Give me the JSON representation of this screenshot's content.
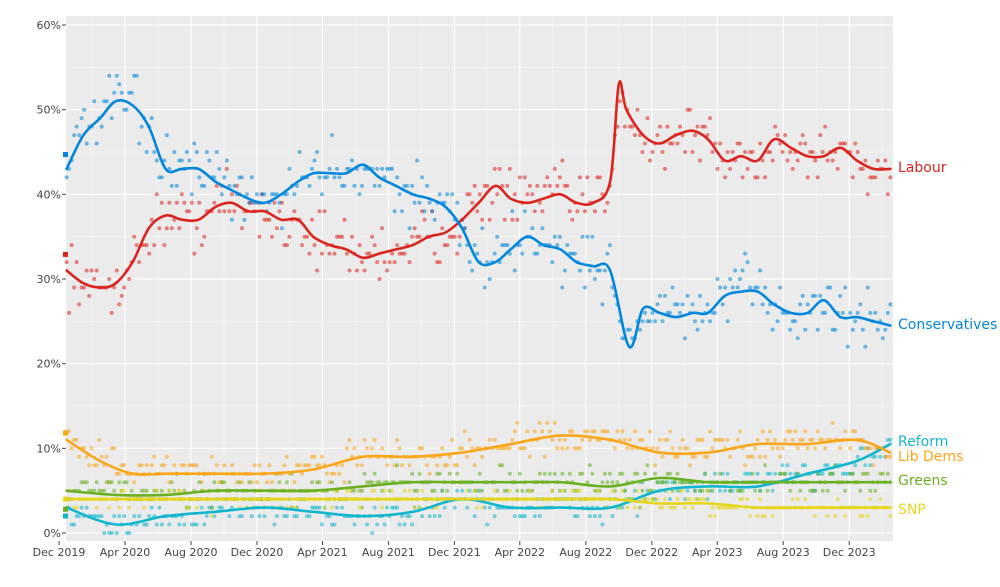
{
  "chart_data": {
    "type": "scatter",
    "title": "",
    "xlabel": "",
    "ylabel": "",
    "x_ticks": [
      "Dec 2019",
      "Apr 2020",
      "Aug 2020",
      "Dec 2020",
      "Apr 2021",
      "Aug 2021",
      "Dec 2021",
      "Apr 2022",
      "Aug 2022",
      "Dec 2022",
      "Apr 2023",
      "Aug 2023",
      "Dec 2023"
    ],
    "y_ticks": [
      "0%",
      "10%",
      "20%",
      "30%",
      "40%",
      "50%",
      "60%"
    ],
    "x_range": [
      "2019-12-12",
      "2024-02-20"
    ],
    "ylim": [
      0,
      60
    ],
    "grid": true,
    "background": "#ebebeb",
    "election_result_markers": [
      {
        "party": "Conservatives",
        "value": 44.7
      },
      {
        "party": "Labour",
        "value": 32.9
      },
      {
        "party": "Lib Dems",
        "value": 11.8
      },
      {
        "party": "Greens",
        "value": 2.8
      },
      {
        "party": "SNP",
        "value": 4.0
      },
      {
        "party": "Reform",
        "value": 2.0
      }
    ],
    "series": [
      {
        "name": "Labour",
        "color": "#dc241f",
        "x": [
          "2019-12-15",
          "2020-01-15",
          "2020-02-15",
          "2020-03-15",
          "2020-04-15",
          "2020-05-15",
          "2020-06-15",
          "2020-07-15",
          "2020-08-15",
          "2020-09-15",
          "2020-10-15",
          "2020-11-15",
          "2020-12-15",
          "2021-01-15",
          "2021-02-15",
          "2021-03-15",
          "2021-04-15",
          "2021-05-15",
          "2021-06-15",
          "2021-07-15",
          "2021-08-15",
          "2021-09-15",
          "2021-10-15",
          "2021-11-15",
          "2021-12-15",
          "2022-01-15",
          "2022-02-15",
          "2022-03-15",
          "2022-04-15",
          "2022-05-15",
          "2022-06-15",
          "2022-07-15",
          "2022-08-15",
          "2022-09-15",
          "2022-10-01",
          "2022-10-15",
          "2022-11-15",
          "2022-12-15",
          "2023-01-15",
          "2023-02-15",
          "2023-03-15",
          "2023-04-15",
          "2023-05-15",
          "2023-06-15",
          "2023-07-15",
          "2023-08-15",
          "2023-09-15",
          "2023-10-15",
          "2023-11-15",
          "2023-12-15",
          "2024-01-15",
          "2024-02-15"
        ],
        "values": [
          31,
          29.5,
          29,
          29.5,
          32,
          36,
          37.5,
          37,
          37,
          38.5,
          39,
          38,
          38,
          37,
          37,
          35,
          34,
          33.5,
          32.5,
          33,
          33.5,
          34,
          35,
          35.5,
          37,
          39,
          41,
          39.5,
          39,
          39.5,
          40,
          39,
          39,
          41.5,
          53,
          50,
          47,
          46,
          47,
          47.5,
          46.5,
          44,
          44.5,
          44,
          46.5,
          45.5,
          44.5,
          44.5,
          45.5,
          44,
          43,
          43
        ]
      },
      {
        "name": "Conservatives",
        "color": "#0087dc",
        "x": [
          "2019-12-15",
          "2020-01-15",
          "2020-02-15",
          "2020-03-15",
          "2020-04-15",
          "2020-05-15",
          "2020-06-15",
          "2020-07-15",
          "2020-08-15",
          "2020-09-15",
          "2020-10-15",
          "2020-11-15",
          "2020-12-15",
          "2021-01-15",
          "2021-02-15",
          "2021-03-15",
          "2021-04-15",
          "2021-05-15",
          "2021-06-15",
          "2021-07-15",
          "2021-08-15",
          "2021-09-15",
          "2021-10-15",
          "2021-11-15",
          "2021-12-15",
          "2022-01-15",
          "2022-02-15",
          "2022-03-15",
          "2022-04-15",
          "2022-05-15",
          "2022-06-15",
          "2022-07-15",
          "2022-08-15",
          "2022-09-15",
          "2022-10-20",
          "2022-11-15",
          "2022-12-15",
          "2023-01-15",
          "2023-02-15",
          "2023-03-15",
          "2023-04-15",
          "2023-05-15",
          "2023-06-15",
          "2023-07-15",
          "2023-08-15",
          "2023-09-15",
          "2023-10-15",
          "2023-11-15",
          "2023-12-15",
          "2024-01-15",
          "2024-02-15"
        ],
        "values": [
          43,
          47,
          49,
          51,
          50.5,
          48,
          43,
          43,
          43,
          41.5,
          40.5,
          39.5,
          39,
          40,
          41.5,
          42.5,
          42.5,
          42.5,
          43.5,
          42,
          41,
          40,
          39.5,
          38.5,
          36,
          32,
          32,
          33.5,
          35,
          34,
          33.5,
          32,
          31.5,
          31,
          22,
          26.5,
          26,
          25.5,
          26,
          26,
          28,
          28.5,
          28.5,
          27,
          26,
          26,
          27.5,
          25.5,
          25.5,
          25,
          24.5
        ]
      },
      {
        "name": "Reform",
        "color": "#12b6cf",
        "x": [
          "2019-12-15",
          "2020-03-15",
          "2020-06-15",
          "2020-09-15",
          "2020-12-15",
          "2021-03-15",
          "2021-06-15",
          "2021-09-15",
          "2021-12-15",
          "2022-03-15",
          "2022-06-15",
          "2022-09-15",
          "2022-12-15",
          "2023-03-15",
          "2023-06-15",
          "2023-09-15",
          "2023-12-15",
          "2024-02-15"
        ],
        "values": [
          3,
          1,
          2,
          2.5,
          3,
          2.5,
          2,
          2.5,
          4,
          3,
          3,
          3,
          5,
          5.5,
          5.5,
          7,
          8.5,
          10.5
        ]
      },
      {
        "name": "Lib Dems",
        "color": "#faa61a",
        "x": [
          "2019-12-15",
          "2020-02-15",
          "2020-04-15",
          "2020-06-15",
          "2020-09-15",
          "2020-12-15",
          "2021-03-15",
          "2021-06-15",
          "2021-09-15",
          "2021-12-15",
          "2022-03-15",
          "2022-06-15",
          "2022-09-15",
          "2022-12-15",
          "2023-03-15",
          "2023-06-15",
          "2023-09-15",
          "2023-12-15",
          "2024-02-15"
        ],
        "values": [
          11,
          8.5,
          7,
          7,
          7,
          7,
          7.5,
          9,
          9,
          9.5,
          10.5,
          11.5,
          11,
          9.5,
          9.5,
          10.5,
          10.5,
          11,
          9.5
        ]
      },
      {
        "name": "Greens",
        "color": "#6ab023",
        "x": [
          "2019-12-15",
          "2020-03-15",
          "2020-06-15",
          "2020-09-15",
          "2020-12-15",
          "2021-03-15",
          "2021-06-15",
          "2021-09-15",
          "2021-12-15",
          "2022-03-15",
          "2022-06-15",
          "2022-09-15",
          "2022-12-15",
          "2023-03-15",
          "2023-06-15",
          "2023-09-15",
          "2023-12-15",
          "2024-02-15"
        ],
        "values": [
          5,
          4.5,
          4.5,
          5,
          5,
          5,
          5.5,
          6,
          6,
          6,
          6,
          5.5,
          6.5,
          6,
          6,
          6,
          6,
          6
        ]
      },
      {
        "name": "SNP",
        "color": "#e6d51e",
        "x": [
          "2019-12-15",
          "2020-03-15",
          "2020-06-15",
          "2020-09-15",
          "2020-12-15",
          "2021-03-15",
          "2021-06-15",
          "2021-09-15",
          "2021-12-15",
          "2022-03-15",
          "2022-06-15",
          "2022-09-15",
          "2022-12-15",
          "2023-03-15",
          "2023-06-15",
          "2023-09-15",
          "2023-12-15",
          "2024-02-15"
        ],
        "values": [
          4,
          4,
          4,
          4,
          4,
          4,
          4,
          4,
          4,
          4,
          4,
          4,
          3.5,
          3.5,
          3,
          3,
          3,
          3
        ]
      }
    ]
  }
}
